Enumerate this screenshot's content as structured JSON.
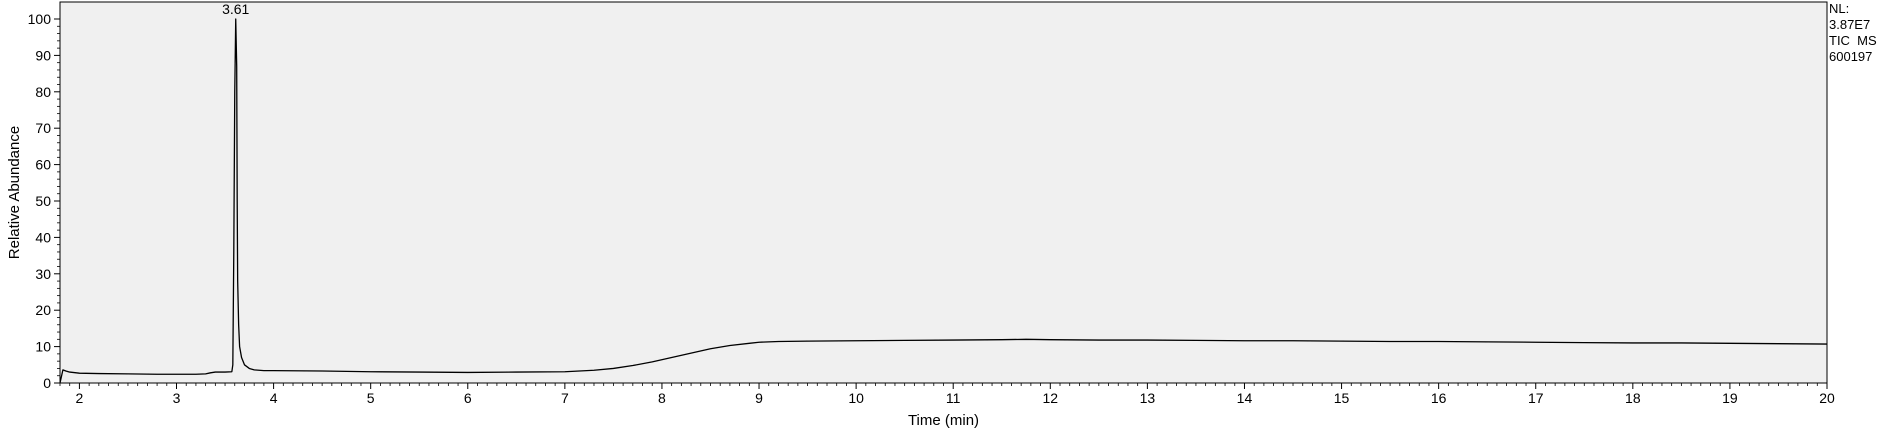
{
  "chart_data": {
    "type": "line",
    "xlabel": "Time (min)",
    "ylabel": "Relative Abundance",
    "xlim": [
      1.8,
      20
    ],
    "ylim": [
      0,
      100
    ],
    "x_ticks": [
      2,
      3,
      4,
      5,
      6,
      7,
      8,
      9,
      10,
      11,
      12,
      13,
      14,
      15,
      16,
      17,
      18,
      19,
      20
    ],
    "y_ticks": [
      0,
      10,
      20,
      30,
      40,
      50,
      60,
      70,
      80,
      90,
      100
    ],
    "peak_labels": [
      {
        "text": "3.61",
        "x": 3.61,
        "y": 100
      }
    ],
    "info_lines": [
      "NL:",
      "3.87E7",
      "TIC  MS",
      "600197"
    ],
    "colors": {
      "line": "#000000",
      "plot_background": "#f0f0f0",
      "axis": "#000000"
    },
    "series": [
      {
        "points": [
          [
            1.8,
            0
          ],
          [
            1.83,
            3.6
          ],
          [
            1.86,
            3.3
          ],
          [
            1.9,
            3.0
          ],
          [
            2.0,
            2.7
          ],
          [
            2.2,
            2.6
          ],
          [
            2.5,
            2.5
          ],
          [
            2.8,
            2.4
          ],
          [
            3.0,
            2.4
          ],
          [
            3.2,
            2.4
          ],
          [
            3.3,
            2.5
          ],
          [
            3.35,
            2.8
          ],
          [
            3.4,
            3.0
          ],
          [
            3.5,
            3.0
          ],
          [
            3.57,
            3.1
          ],
          [
            3.58,
            5
          ],
          [
            3.59,
            36
          ],
          [
            3.6,
            80
          ],
          [
            3.61,
            100
          ],
          [
            3.62,
            87
          ],
          [
            3.625,
            50
          ],
          [
            3.63,
            28
          ],
          [
            3.64,
            16
          ],
          [
            3.65,
            10
          ],
          [
            3.67,
            7
          ],
          [
            3.7,
            5
          ],
          [
            3.75,
            4.0
          ],
          [
            3.8,
            3.6
          ],
          [
            3.9,
            3.4
          ],
          [
            4.0,
            3.4
          ],
          [
            4.5,
            3.3
          ],
          [
            5.0,
            3.1
          ],
          [
            5.5,
            3.0
          ],
          [
            6.0,
            2.9
          ],
          [
            6.5,
            3.0
          ],
          [
            7.0,
            3.1
          ],
          [
            7.3,
            3.5
          ],
          [
            7.5,
            4.0
          ],
          [
            7.7,
            4.8
          ],
          [
            7.9,
            5.8
          ],
          [
            8.1,
            7.0
          ],
          [
            8.3,
            8.2
          ],
          [
            8.5,
            9.4
          ],
          [
            8.7,
            10.3
          ],
          [
            8.9,
            10.9
          ],
          [
            9.0,
            11.2
          ],
          [
            9.2,
            11.4
          ],
          [
            9.5,
            11.5
          ],
          [
            10.0,
            11.6
          ],
          [
            10.5,
            11.7
          ],
          [
            11.0,
            11.8
          ],
          [
            11.5,
            11.9
          ],
          [
            11.75,
            12.0
          ],
          [
            12.0,
            11.9
          ],
          [
            12.5,
            11.8
          ],
          [
            13.0,
            11.8
          ],
          [
            13.5,
            11.7
          ],
          [
            14.0,
            11.6
          ],
          [
            14.5,
            11.6
          ],
          [
            15.0,
            11.5
          ],
          [
            15.5,
            11.4
          ],
          [
            16.0,
            11.4
          ],
          [
            16.5,
            11.3
          ],
          [
            17.0,
            11.2
          ],
          [
            17.5,
            11.1
          ],
          [
            18.0,
            11.0
          ],
          [
            18.5,
            11.0
          ],
          [
            19.0,
            10.9
          ],
          [
            19.5,
            10.8
          ],
          [
            20.0,
            10.7
          ]
        ]
      }
    ]
  }
}
